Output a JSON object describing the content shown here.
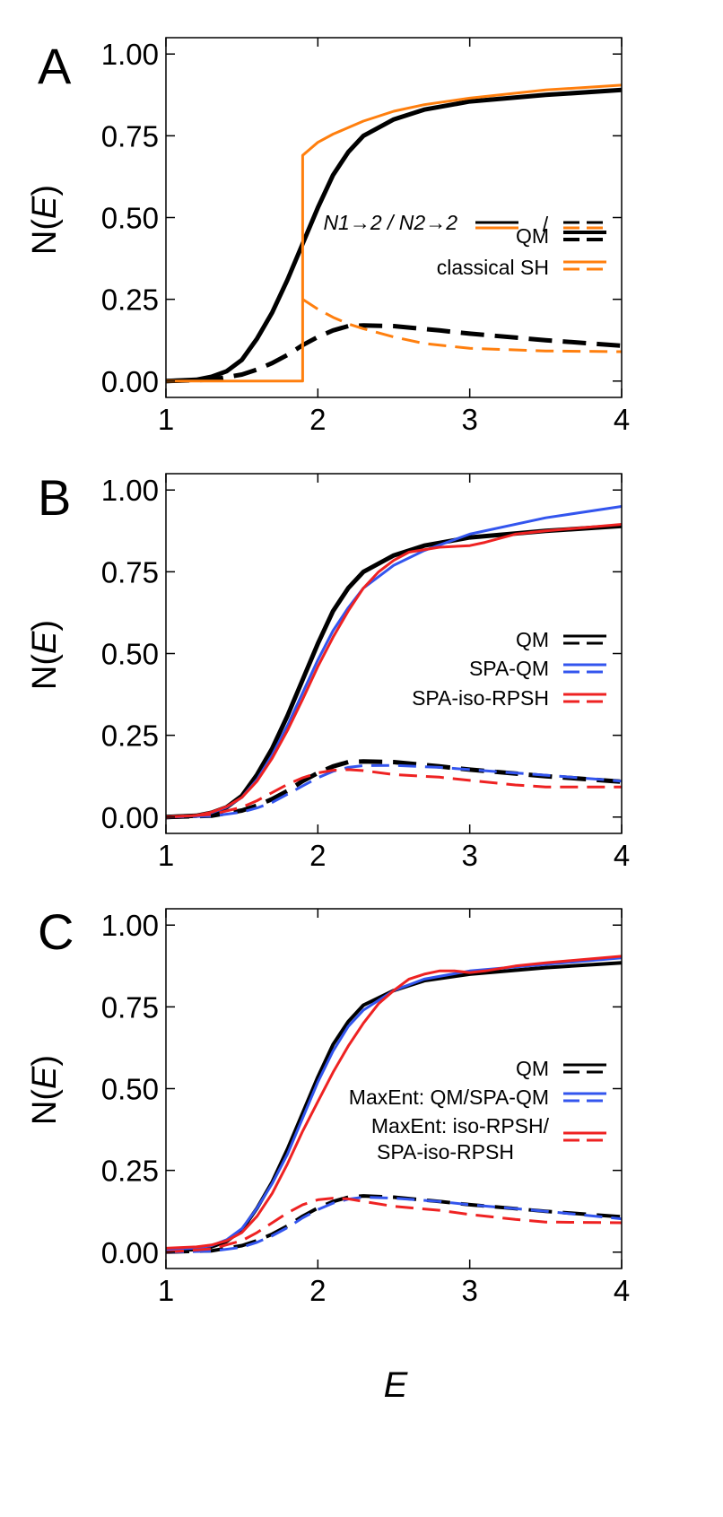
{
  "figure": {
    "xlabel": "E",
    "ylabel_parts": [
      "N(",
      "E",
      ")"
    ]
  },
  "colors": {
    "qm": "#000000",
    "classical": "#ff7f0e",
    "spa_qm": "#3355ee",
    "rpsh": "#ee2222"
  },
  "chart_data": [
    {
      "type": "line",
      "panel_label": "A",
      "xlim": [
        1,
        4
      ],
      "ylim": [
        -0.05,
        1.05
      ],
      "xticks": [
        "1",
        "2",
        "3",
        "4"
      ],
      "yticks": [
        "0.00",
        "0.25",
        "0.50",
        "0.75",
        "1.00"
      ],
      "legend": {
        "header": {
          "label": "N1→2 / N2→2",
          "separator": "/"
        },
        "entries": [
          {
            "label": "QM",
            "color": "#000000"
          },
          {
            "label": "classical SH",
            "color": "#ff7f0e"
          }
        ]
      },
      "series": [
        {
          "name": "QM N1→2",
          "color": "#000000",
          "dash": false,
          "width": 5,
          "x": [
            1.0,
            1.2,
            1.3,
            1.4,
            1.5,
            1.6,
            1.7,
            1.8,
            1.9,
            2.0,
            2.1,
            2.2,
            2.3,
            2.5,
            2.7,
            3.0,
            3.5,
            4.0
          ],
          "y": [
            0.0,
            0.004,
            0.013,
            0.03,
            0.065,
            0.13,
            0.21,
            0.31,
            0.42,
            0.53,
            0.63,
            0.7,
            0.75,
            0.8,
            0.83,
            0.855,
            0.875,
            0.89
          ]
        },
        {
          "name": "QM N2→2",
          "color": "#000000",
          "dash": true,
          "width": 5,
          "x": [
            1.0,
            1.3,
            1.5,
            1.6,
            1.7,
            1.8,
            1.9,
            2.0,
            2.1,
            2.2,
            2.3,
            2.5,
            2.8,
            3.0,
            3.5,
            4.0
          ],
          "y": [
            0.0,
            0.004,
            0.02,
            0.035,
            0.055,
            0.08,
            0.11,
            0.135,
            0.155,
            0.168,
            0.17,
            0.168,
            0.155,
            0.145,
            0.125,
            0.108
          ]
        },
        {
          "name": "classical SH N1→2",
          "color": "#ff7f0e",
          "dash": false,
          "width": 3,
          "x": [
            1.0,
            1.9,
            1.9,
            1.95,
            2.0,
            2.1,
            2.2,
            2.3,
            2.4,
            2.5,
            2.7,
            3.0,
            3.5,
            4.0
          ],
          "y": [
            0.0,
            0.0,
            0.69,
            0.71,
            0.73,
            0.755,
            0.775,
            0.795,
            0.81,
            0.825,
            0.845,
            0.865,
            0.89,
            0.905
          ]
        },
        {
          "name": "classical SH N2→2",
          "color": "#ff7f0e",
          "dash": true,
          "width": 3,
          "x": [
            1.9,
            1.95,
            2.0,
            2.1,
            2.2,
            2.3,
            2.5,
            2.7,
            3.0,
            3.5,
            4.0
          ],
          "y": [
            0.25,
            0.235,
            0.22,
            0.195,
            0.175,
            0.16,
            0.135,
            0.115,
            0.1,
            0.092,
            0.09
          ]
        }
      ]
    },
    {
      "type": "line",
      "panel_label": "B",
      "xlim": [
        1,
        4
      ],
      "ylim": [
        -0.05,
        1.05
      ],
      "xticks": [
        "1",
        "2",
        "3",
        "4"
      ],
      "yticks": [
        "0.00",
        "0.25",
        "0.50",
        "0.75",
        "1.00"
      ],
      "legend": {
        "entries": [
          {
            "label": "QM",
            "color": "#000000"
          },
          {
            "label": "SPA-QM",
            "color": "#3355ee"
          },
          {
            "label": "SPA-iso-RPSH",
            "color": "#ee2222"
          }
        ]
      },
      "series": [
        {
          "name": "QM N1→2",
          "color": "#000000",
          "dash": false,
          "width": 5,
          "x": [
            1.0,
            1.2,
            1.3,
            1.4,
            1.5,
            1.6,
            1.7,
            1.8,
            1.9,
            2.0,
            2.1,
            2.2,
            2.3,
            2.5,
            2.7,
            3.0,
            3.5,
            4.0
          ],
          "y": [
            0.0,
            0.004,
            0.013,
            0.03,
            0.065,
            0.13,
            0.21,
            0.31,
            0.42,
            0.53,
            0.63,
            0.7,
            0.75,
            0.8,
            0.83,
            0.855,
            0.875,
            0.89
          ]
        },
        {
          "name": "QM N2→2",
          "color": "#000000",
          "dash": true,
          "width": 5,
          "x": [
            1.0,
            1.3,
            1.5,
            1.6,
            1.7,
            1.8,
            1.9,
            2.0,
            2.1,
            2.2,
            2.3,
            2.5,
            2.8,
            3.0,
            3.5,
            4.0
          ],
          "y": [
            0.0,
            0.004,
            0.02,
            0.035,
            0.055,
            0.08,
            0.11,
            0.135,
            0.155,
            0.168,
            0.17,
            0.168,
            0.155,
            0.145,
            0.125,
            0.108
          ]
        },
        {
          "name": "SPA-QM N1→2",
          "color": "#3355ee",
          "dash": false,
          "width": 3,
          "x": [
            1.0,
            1.2,
            1.3,
            1.4,
            1.5,
            1.6,
            1.7,
            1.8,
            1.9,
            2.0,
            2.1,
            2.2,
            2.3,
            2.5,
            2.7,
            3.0,
            3.5,
            4.0
          ],
          "y": [
            0.0,
            0.004,
            0.013,
            0.03,
            0.06,
            0.115,
            0.19,
            0.28,
            0.38,
            0.48,
            0.57,
            0.64,
            0.7,
            0.77,
            0.815,
            0.865,
            0.915,
            0.95
          ]
        },
        {
          "name": "SPA-QM N2→2",
          "color": "#3355ee",
          "dash": true,
          "width": 3,
          "x": [
            1.0,
            1.3,
            1.5,
            1.6,
            1.7,
            1.8,
            1.9,
            2.0,
            2.1,
            2.2,
            2.3,
            2.5,
            2.8,
            3.0,
            3.5,
            4.0
          ],
          "y": [
            0.0,
            0.003,
            0.015,
            0.028,
            0.045,
            0.07,
            0.095,
            0.12,
            0.14,
            0.152,
            0.157,
            0.158,
            0.152,
            0.145,
            0.128,
            0.11
          ]
        },
        {
          "name": "SPA-iso-RPSH N1→2",
          "color": "#ee2222",
          "dash": false,
          "width": 3,
          "x": [
            1.0,
            1.2,
            1.3,
            1.4,
            1.5,
            1.6,
            1.7,
            1.8,
            1.9,
            2.0,
            2.1,
            2.2,
            2.3,
            2.4,
            2.5,
            2.6,
            2.8,
            3.0,
            3.1,
            3.3,
            3.5,
            4.0
          ],
          "y": [
            0.0,
            0.005,
            0.015,
            0.032,
            0.06,
            0.11,
            0.18,
            0.265,
            0.36,
            0.46,
            0.55,
            0.63,
            0.7,
            0.75,
            0.785,
            0.81,
            0.825,
            0.83,
            0.84,
            0.865,
            0.875,
            0.895
          ]
        },
        {
          "name": "SPA-iso-RPSH N2→2",
          "color": "#ee2222",
          "dash": true,
          "width": 3,
          "x": [
            1.0,
            1.3,
            1.5,
            1.6,
            1.7,
            1.8,
            1.9,
            2.0,
            2.1,
            2.2,
            2.3,
            2.5,
            2.8,
            3.0,
            3.3,
            3.5,
            4.0
          ],
          "y": [
            0.0,
            0.008,
            0.03,
            0.05,
            0.075,
            0.1,
            0.12,
            0.135,
            0.143,
            0.145,
            0.142,
            0.13,
            0.122,
            0.112,
            0.098,
            0.092,
            0.092
          ]
        }
      ]
    },
    {
      "type": "line",
      "panel_label": "C",
      "xlim": [
        1,
        4
      ],
      "ylim": [
        -0.05,
        1.05
      ],
      "xticks": [
        "1",
        "2",
        "3",
        "4"
      ],
      "yticks": [
        "0.00",
        "0.25",
        "0.50",
        "0.75",
        "1.00"
      ],
      "legend": {
        "entries": [
          {
            "label": "QM",
            "color": "#000000"
          },
          {
            "label": "MaxEnt: QM/SPA-QM",
            "color": "#3355ee"
          },
          {
            "label": "MaxEnt: iso-RPSH/",
            "label2": "SPA-iso-RPSH",
            "color": "#ee2222"
          }
        ]
      },
      "series": [
        {
          "name": "QM N1→2",
          "color": "#000000",
          "dash": false,
          "width": 4,
          "x": [
            1.0,
            1.2,
            1.3,
            1.4,
            1.5,
            1.6,
            1.7,
            1.8,
            1.9,
            2.0,
            2.1,
            2.2,
            2.3,
            2.5,
            2.7,
            3.0,
            3.5,
            4.0
          ],
          "y": [
            0.005,
            0.008,
            0.016,
            0.033,
            0.068,
            0.135,
            0.215,
            0.315,
            0.425,
            0.535,
            0.635,
            0.705,
            0.755,
            0.8,
            0.83,
            0.85,
            0.87,
            0.885
          ]
        },
        {
          "name": "QM N2→2",
          "color": "#000000",
          "dash": true,
          "width": 4,
          "x": [
            1.0,
            1.3,
            1.5,
            1.6,
            1.7,
            1.8,
            1.9,
            2.0,
            2.1,
            2.2,
            2.3,
            2.5,
            2.8,
            3.0,
            3.5,
            4.0
          ],
          "y": [
            0.0,
            0.004,
            0.02,
            0.035,
            0.055,
            0.08,
            0.11,
            0.135,
            0.155,
            0.168,
            0.172,
            0.168,
            0.155,
            0.145,
            0.125,
            0.108
          ]
        },
        {
          "name": "MaxEnt QM/SPA-QM N1→2",
          "color": "#3355ee",
          "dash": false,
          "width": 3,
          "x": [
            1.0,
            1.2,
            1.3,
            1.4,
            1.5,
            1.6,
            1.7,
            1.8,
            1.9,
            2.0,
            2.1,
            2.2,
            2.3,
            2.5,
            2.7,
            3.0,
            3.5,
            4.0
          ],
          "y": [
            0.008,
            0.012,
            0.02,
            0.038,
            0.072,
            0.135,
            0.21,
            0.3,
            0.41,
            0.52,
            0.615,
            0.69,
            0.74,
            0.8,
            0.835,
            0.86,
            0.88,
            0.9
          ]
        },
        {
          "name": "MaxEnt QM/SPA-QM N2→2",
          "color": "#3355ee",
          "dash": true,
          "width": 3,
          "x": [
            1.0,
            1.3,
            1.5,
            1.6,
            1.7,
            1.8,
            1.9,
            2.0,
            2.1,
            2.2,
            2.3,
            2.5,
            2.8,
            3.0,
            3.5,
            4.0
          ],
          "y": [
            0.0,
            0.003,
            0.015,
            0.03,
            0.05,
            0.075,
            0.105,
            0.13,
            0.15,
            0.162,
            0.168,
            0.165,
            0.155,
            0.145,
            0.125,
            0.102
          ]
        },
        {
          "name": "MaxEnt iso-RPSH/SPA-iso-RPSH N1→2",
          "color": "#ee2222",
          "dash": false,
          "width": 3,
          "x": [
            1.0,
            1.2,
            1.3,
            1.4,
            1.5,
            1.6,
            1.7,
            1.8,
            1.9,
            2.0,
            2.1,
            2.2,
            2.3,
            2.4,
            2.5,
            2.6,
            2.7,
            2.8,
            2.9,
            3.0,
            3.1,
            3.3,
            3.5,
            4.0
          ],
          "y": [
            0.012,
            0.016,
            0.022,
            0.035,
            0.06,
            0.11,
            0.18,
            0.27,
            0.37,
            0.46,
            0.55,
            0.63,
            0.7,
            0.76,
            0.8,
            0.835,
            0.85,
            0.86,
            0.86,
            0.855,
            0.86,
            0.875,
            0.885,
            0.905
          ]
        },
        {
          "name": "MaxEnt iso-RPSH/SPA-iso-RPSH N2→2",
          "color": "#ee2222",
          "dash": true,
          "width": 3,
          "x": [
            1.0,
            1.3,
            1.5,
            1.6,
            1.7,
            1.8,
            1.9,
            2.0,
            2.1,
            2.2,
            2.3,
            2.5,
            2.8,
            3.0,
            3.3,
            3.5,
            4.0
          ],
          "y": [
            0.0,
            0.01,
            0.035,
            0.06,
            0.09,
            0.12,
            0.145,
            0.16,
            0.165,
            0.163,
            0.155,
            0.14,
            0.128,
            0.115,
            0.1,
            0.092,
            0.09
          ]
        }
      ]
    }
  ]
}
